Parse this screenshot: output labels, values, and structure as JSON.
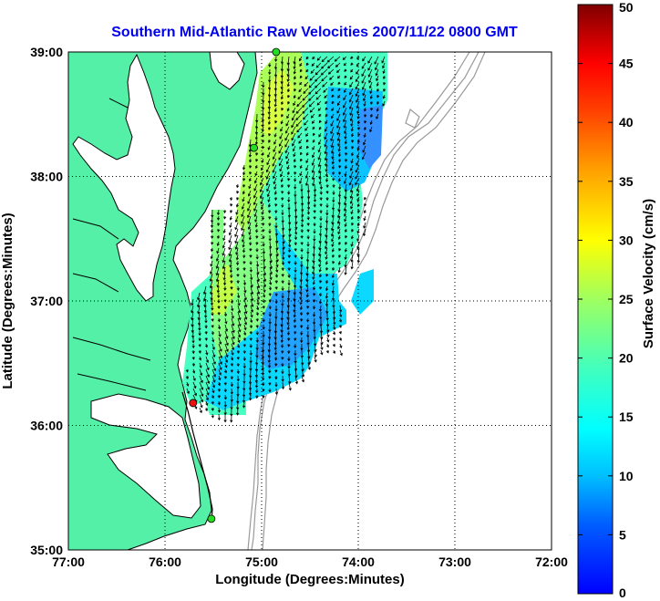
{
  "chart_data": {
    "type": "map",
    "title": "Southern Mid-Atlantic Raw Velocities 2007/11/22 0800 GMT",
    "xlabel": "Longitude (Degrees:Minutes)",
    "ylabel": "Latitude (Degrees:Minutes)",
    "x_ticks": [
      "77:00",
      "76:00",
      "75:00",
      "74:00",
      "73:00",
      "72:00"
    ],
    "y_ticks": [
      "39:00",
      "38:00",
      "37:00",
      "36:00",
      "35:00"
    ],
    "xlim": [
      -77,
      -72
    ],
    "ylim": [
      35,
      39
    ],
    "grid": "dotted",
    "colorbar": {
      "label": "Surface Velocity (cm/s)",
      "ticks": [
        "0",
        "5",
        "10",
        "15",
        "20",
        "25",
        "30",
        "35",
        "40",
        "45",
        "50"
      ],
      "range": [
        0,
        50
      ],
      "colormap": "jet"
    },
    "colors": {
      "land": "#55f0a8",
      "water": "#ffffff",
      "bathymetry": "#999999",
      "coast": "#000000",
      "title": "#0000ee"
    },
    "radar_sites": [
      {
        "lon": -74.85,
        "lat": 39.0,
        "color": "#22dd22"
      },
      {
        "lon": -75.08,
        "lat": 38.23,
        "color": "#22dd22"
      },
      {
        "lon": -75.71,
        "lat": 36.18,
        "color": "#ee1111"
      },
      {
        "lon": -75.52,
        "lat": 35.25,
        "color": "#22dd22"
      }
    ]
  }
}
